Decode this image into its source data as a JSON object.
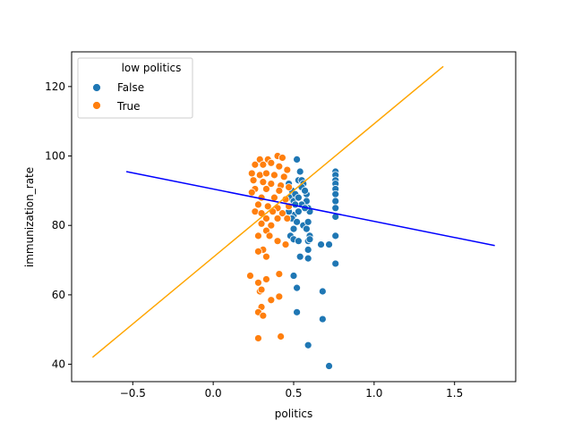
{
  "chart_data": {
    "type": "scatter",
    "title": "",
    "xlabel": "politics",
    "ylabel": "immunization_rate",
    "xlim": [
      -0.88,
      1.88
    ],
    "ylim": [
      35,
      130
    ],
    "xticks": [
      -0.5,
      0.0,
      0.5,
      1.0,
      1.5
    ],
    "xtick_labels": [
      "−0.5",
      "0.0",
      "0.5",
      "1.0",
      "1.5"
    ],
    "yticks": [
      40,
      60,
      80,
      100,
      120
    ],
    "ytick_labels": [
      "40",
      "60",
      "80",
      "100",
      "120"
    ],
    "grid": false,
    "legend": {
      "title": "low politics",
      "placement": "top-left",
      "entries": [
        {
          "label": "False",
          "color": "#1f77b4"
        },
        {
          "label": "True",
          "color": "#ff7f0e"
        }
      ]
    },
    "series": [
      {
        "name": "False",
        "color": "#1f77b4",
        "points": [
          [
            0.47,
            92
          ],
          [
            0.48,
            88
          ],
          [
            0.5,
            87
          ],
          [
            0.5,
            83
          ],
          [
            0.5,
            79
          ],
          [
            0.52,
            99
          ],
          [
            0.53,
            93
          ],
          [
            0.54,
            95.5
          ],
          [
            0.55,
            93
          ],
          [
            0.56,
            92
          ],
          [
            0.57,
            90
          ],
          [
            0.58,
            89
          ],
          [
            0.58,
            87
          ],
          [
            0.59,
            85
          ],
          [
            0.6,
            84
          ],
          [
            0.49,
            90
          ],
          [
            0.51,
            89
          ],
          [
            0.53,
            88
          ],
          [
            0.55,
            86
          ],
          [
            0.57,
            85
          ],
          [
            0.47,
            84
          ],
          [
            0.49,
            82
          ],
          [
            0.52,
            81
          ],
          [
            0.56,
            80
          ],
          [
            0.58,
            79
          ],
          [
            0.6,
            77
          ],
          [
            0.48,
            77
          ],
          [
            0.5,
            76
          ],
          [
            0.53,
            75.5
          ],
          [
            0.59,
            75.5
          ],
          [
            0.6,
            76
          ],
          [
            0.59,
            73
          ],
          [
            0.54,
            71
          ],
          [
            0.59,
            70.5
          ],
          [
            0.5,
            65.5
          ],
          [
            0.52,
            62
          ],
          [
            0.52,
            55
          ],
          [
            0.59,
            45.5
          ],
          [
            0.67,
            74.5
          ],
          [
            0.72,
            74.5
          ],
          [
            0.68,
            61
          ],
          [
            0.68,
            53
          ],
          [
            0.72,
            39.5
          ],
          [
            0.76,
            95.5
          ],
          [
            0.76,
            94.5
          ],
          [
            0.76,
            93
          ],
          [
            0.76,
            92
          ],
          [
            0.76,
            90.5
          ],
          [
            0.76,
            89
          ],
          [
            0.76,
            87
          ],
          [
            0.76,
            85
          ],
          [
            0.76,
            82.5
          ],
          [
            0.76,
            77
          ],
          [
            0.76,
            69
          ],
          [
            0.55,
            91
          ],
          [
            0.57,
            90
          ],
          [
            0.53,
            84
          ],
          [
            0.51,
            86
          ],
          [
            0.59,
            81
          ]
        ]
      },
      {
        "name": "True",
        "color": "#ff7f0e",
        "points": [
          [
            0.29,
            99
          ],
          [
            0.34,
            99
          ],
          [
            0.4,
            100
          ],
          [
            0.43,
            99.5
          ],
          [
            0.26,
            97.5
          ],
          [
            0.31,
            97.5
          ],
          [
            0.36,
            98
          ],
          [
            0.41,
            97
          ],
          [
            0.46,
            96
          ],
          [
            0.24,
            95
          ],
          [
            0.29,
            94.5
          ],
          [
            0.33,
            95
          ],
          [
            0.38,
            94.5
          ],
          [
            0.44,
            94
          ],
          [
            0.25,
            93
          ],
          [
            0.31,
            92.5
          ],
          [
            0.36,
            92
          ],
          [
            0.42,
            91.5
          ],
          [
            0.26,
            90.5
          ],
          [
            0.33,
            90.5
          ],
          [
            0.41,
            90
          ],
          [
            0.47,
            91
          ],
          [
            0.24,
            89.5
          ],
          [
            0.3,
            88
          ],
          [
            0.38,
            88
          ],
          [
            0.45,
            87.5
          ],
          [
            0.28,
            86
          ],
          [
            0.34,
            85.5
          ],
          [
            0.4,
            85
          ],
          [
            0.47,
            85.5
          ],
          [
            0.26,
            84
          ],
          [
            0.3,
            83.5
          ],
          [
            0.37,
            84
          ],
          [
            0.43,
            83.5
          ],
          [
            0.33,
            82
          ],
          [
            0.4,
            82
          ],
          [
            0.46,
            82
          ],
          [
            0.3,
            80.5
          ],
          [
            0.36,
            80
          ],
          [
            0.33,
            78.5
          ],
          [
            0.35,
            77
          ],
          [
            0.28,
            77
          ],
          [
            0.4,
            75.5
          ],
          [
            0.45,
            74.5
          ],
          [
            0.31,
            73
          ],
          [
            0.28,
            72.5
          ],
          [
            0.33,
            71
          ],
          [
            0.41,
            66
          ],
          [
            0.23,
            65.5
          ],
          [
            0.33,
            64.5
          ],
          [
            0.28,
            63.5
          ],
          [
            0.29,
            61
          ],
          [
            0.3,
            61.5
          ],
          [
            0.36,
            58.5
          ],
          [
            0.41,
            59.5
          ],
          [
            0.3,
            56.5
          ],
          [
            0.28,
            55
          ],
          [
            0.31,
            54
          ],
          [
            0.28,
            47.5
          ],
          [
            0.42,
            48
          ]
        ]
      }
    ],
    "lines": [
      {
        "color": "#0000ff",
        "x": [
          -0.54,
          1.75
        ],
        "y": [
          95.5,
          74.2
        ]
      },
      {
        "color": "#ffa500",
        "x": [
          -0.75,
          1.43
        ],
        "y": [
          42,
          125.8
        ]
      }
    ]
  }
}
